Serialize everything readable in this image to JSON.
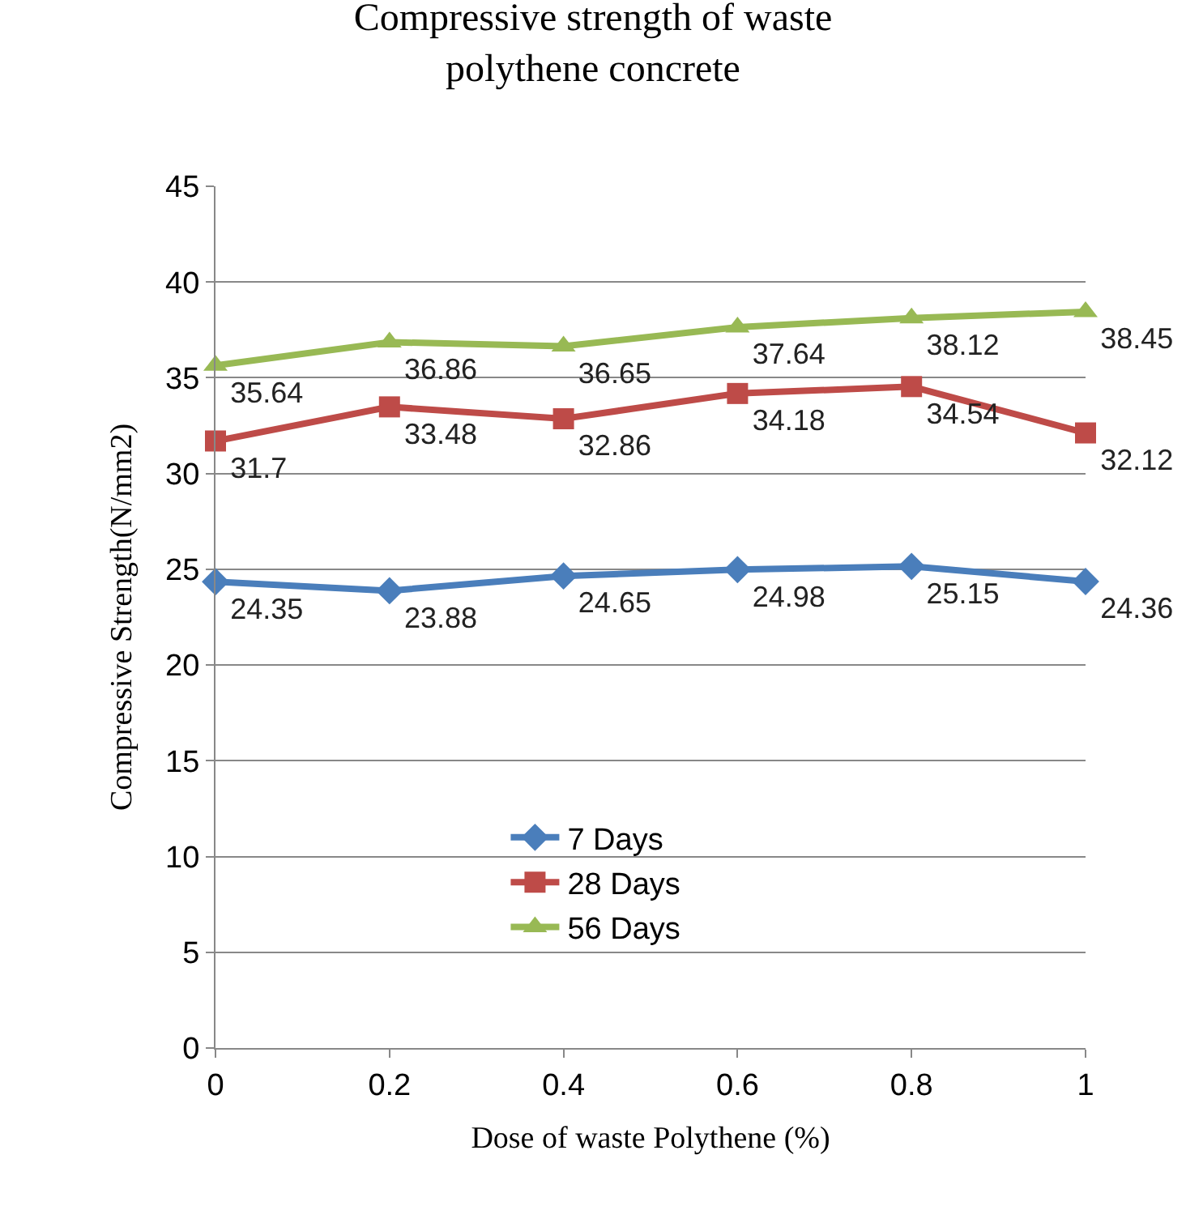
{
  "chart_data": {
    "type": "line",
    "title": "Compressive strength of waste polythene concrete",
    "xlabel": "Dose of waste Polythene (%)",
    "ylabel": "Compressive Strength(N/mm2)",
    "x": [
      0,
      0.2,
      0.4,
      0.6,
      0.8,
      1
    ],
    "series": [
      {
        "name": "7 Days",
        "color": "#4a7ebb",
        "marker": "diamond",
        "values": [
          24.35,
          23.88,
          24.65,
          24.98,
          25.15,
          24.36
        ]
      },
      {
        "name": "28 Days",
        "color": "#be4b48",
        "marker": "square",
        "values": [
          31.7,
          33.48,
          32.86,
          34.18,
          34.54,
          32.12
        ]
      },
      {
        "name": "56 Days",
        "color": "#98b954",
        "marker": "triangle",
        "values": [
          35.64,
          36.86,
          36.65,
          37.64,
          38.12,
          38.45
        ]
      }
    ],
    "xlim": [
      0,
      1
    ],
    "xticks": [
      0,
      {
        "value": 0.2,
        "label": "0.2"
      },
      {
        "value": 0.4,
        "label": "0.4"
      },
      {
        "value": 0.6,
        "label": "0.6"
      },
      {
        "value": 0.8,
        "label": "0.8"
      },
      1
    ],
    "ylim": [
      0,
      45
    ],
    "yticks": [
      0,
      5,
      10,
      15,
      20,
      25,
      30,
      35,
      40,
      45
    ],
    "grid": "y",
    "legend": "bottom center",
    "data_labels": true,
    "line_style": "solid"
  }
}
